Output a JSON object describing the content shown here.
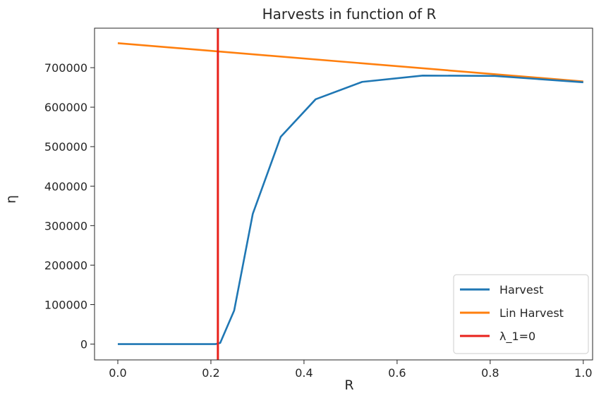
{
  "chart_data": {
    "type": "line",
    "title": "Harvests in function of R",
    "xlabel": "R",
    "ylabel": "η",
    "xlim": [
      -0.05,
      1.02
    ],
    "ylim": [
      -40000,
      800000
    ],
    "x_ticks": [
      {
        "value": 0.0,
        "label": "0.0"
      },
      {
        "value": 0.2,
        "label": "0.2"
      },
      {
        "value": 0.4,
        "label": "0.4"
      },
      {
        "value": 0.6,
        "label": "0.6"
      },
      {
        "value": 0.8,
        "label": "0.8"
      },
      {
        "value": 1.0,
        "label": "1.0"
      }
    ],
    "y_ticks": [
      {
        "value": 0,
        "label": "0"
      },
      {
        "value": 100000,
        "label": "100000"
      },
      {
        "value": 200000,
        "label": "200000"
      },
      {
        "value": 300000,
        "label": "300000"
      },
      {
        "value": 400000,
        "label": "400000"
      },
      {
        "value": 500000,
        "label": "500000"
      },
      {
        "value": 600000,
        "label": "600000"
      },
      {
        "value": 700000,
        "label": "700000"
      }
    ],
    "grid": false,
    "legend_position": "lower-right",
    "series": [
      {
        "name": "Harvest",
        "color": "#1f77b4",
        "style": "solid",
        "x": [
          0.0,
          0.21,
          0.22,
          0.25,
          0.29,
          0.35,
          0.425,
          0.525,
          0.655,
          0.81,
          1.0
        ],
        "y": [
          0,
          0,
          3000,
          85000,
          330000,
          525000,
          620000,
          664000,
          680000,
          679000,
          663000
        ]
      },
      {
        "name": "Lin Harvest",
        "color": "#ff7f0e",
        "style": "solid",
        "x": [
          0.0,
          1.0
        ],
        "y": [
          762000,
          665000
        ]
      },
      {
        "name": "λ_1=0",
        "color": "#e8211b",
        "style": "vertical",
        "x": [
          0.215,
          0.215
        ],
        "y": [
          -40000,
          800000
        ]
      }
    ]
  }
}
